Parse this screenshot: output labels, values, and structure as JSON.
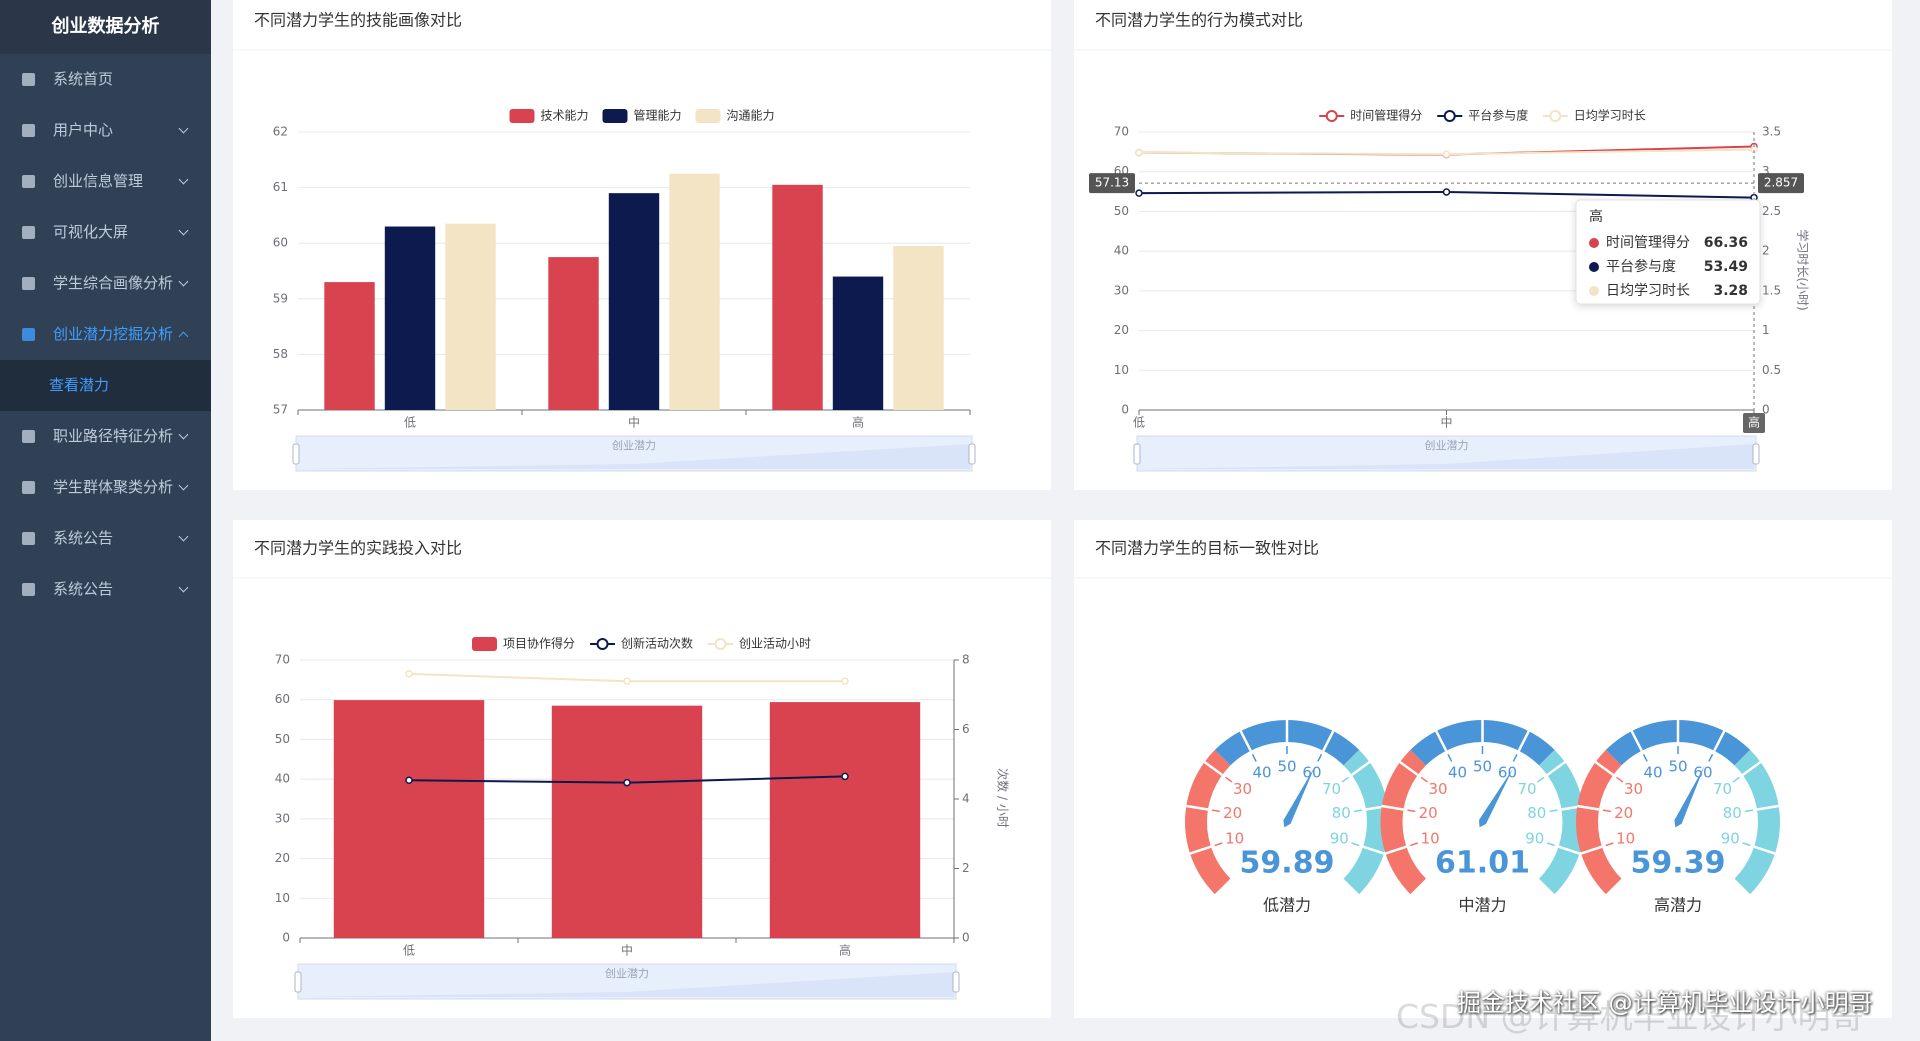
{
  "sidebar": {
    "title": "创业数据分析",
    "menu": [
      {
        "label": "系统首页"
      },
      {
        "label": "用户中心",
        "has_submenu": true
      },
      {
        "label": "创业信息管理",
        "has_submenu": true
      },
      {
        "label": "可视化大屏",
        "has_submenu": true
      },
      {
        "label": "学生综合画像分析",
        "has_submenu": true
      },
      {
        "label": "创业潜力挖掘分析",
        "has_submenu": true,
        "active": true,
        "children": [
          {
            "label": "查看潜力",
            "active": true
          }
        ]
      },
      {
        "label": "职业路径特征分析",
        "has_submenu": true
      },
      {
        "label": "学生群体聚类分析",
        "has_submenu": true
      },
      {
        "label": "系统公告",
        "has_submenu": true
      },
      {
        "label": "系统公告",
        "has_submenu": true
      }
    ]
  },
  "chart_data": [
    {
      "type": "bar",
      "title": "不同潜力学生的技能画像对比",
      "categories": [
        "低",
        "中",
        "高"
      ],
      "series": [
        {
          "name": "技术能力",
          "color": "#d9434f",
          "values": [
            59.3,
            59.75,
            61.05
          ]
        },
        {
          "name": "管理能力",
          "color": "#0c1a4e",
          "values": [
            60.3,
            60.9,
            59.4
          ]
        },
        {
          "name": "沟通能力",
          "color": "#f2e4c4",
          "values": [
            60.35,
            61.25,
            59.95
          ]
        }
      ],
      "ylim": [
        57,
        62
      ],
      "yticks": [
        57,
        58,
        59,
        60,
        61,
        62
      ],
      "grid": true,
      "x_label": "创业潜力"
    },
    {
      "type": "line",
      "title": "不同潜力学生的行为模式对比",
      "categories": [
        "低",
        "中",
        "高"
      ],
      "series": [
        {
          "name": "时间管理得分",
          "color": "#d9434f",
          "values": [
            64.8,
            64.3,
            66.36
          ]
        },
        {
          "name": "平台参与度",
          "color": "#0c1a4e",
          "values": [
            54.6,
            54.9,
            53.49
          ]
        },
        {
          "name": "日均学习时长",
          "color": "#f2e4c4",
          "axis": "y2",
          "values": [
            3.24,
            3.22,
            3.28
          ]
        }
      ],
      "ylim": [
        0,
        70
      ],
      "yticks": [
        0,
        10,
        20,
        30,
        40,
        50,
        60,
        70
      ],
      "y2lim": [
        0,
        3.5
      ],
      "y2ticks": [
        0,
        0.5,
        1,
        1.5,
        2,
        2.5,
        3,
        3.5
      ],
      "y2_label": "学习时长(小时)",
      "grid": true,
      "x_label": "创业潜力",
      "tooltip_index": 2,
      "axis_pointer": {
        "y": 57.13,
        "y2": 2.857
      }
    },
    {
      "type": "bar",
      "title": "不同潜力学生的实践投入对比",
      "categories": [
        "低",
        "中",
        "高"
      ],
      "series": [
        {
          "name": "项目协作得分",
          "color": "#d9434f",
          "values": [
            59.9,
            58.5,
            59.4
          ]
        },
        {
          "name": "创新活动次数",
          "type": "line",
          "axis": "y2",
          "color": "#0c1a4e",
          "values": [
            4.54,
            4.47,
            4.65
          ]
        },
        {
          "name": "创业活动小时",
          "type": "line",
          "axis": "y2",
          "color": "#f2e4c4",
          "values": [
            7.6,
            7.39,
            7.39
          ]
        }
      ],
      "ylim": [
        0,
        70
      ],
      "yticks": [
        0,
        10,
        20,
        30,
        40,
        50,
        60,
        70
      ],
      "y2lim": [
        0,
        8
      ],
      "y2ticks": [
        0,
        2,
        4,
        6,
        8
      ],
      "y2_label": "次数 / 小时",
      "grid": true,
      "x_label": "创业潜力"
    },
    {
      "type": "gauge",
      "title": "不同潜力学生的目标一致性对比",
      "categories": [
        "低潜力",
        "中潜力",
        "高潜力"
      ],
      "values": [
        59.89,
        61.01,
        59.39
      ],
      "ylim": [
        0,
        100
      ],
      "yticks": [
        10,
        20,
        30,
        40,
        50,
        60,
        70,
        80,
        90
      ],
      "colors": [
        "#f4766a",
        "#4a94d8",
        "#7fd4e2"
      ]
    }
  ],
  "watermarks": [
    "掘金技术社区 @计算机毕业设计小明哥",
    "CSDN @计算机毕业设计小明哥"
  ]
}
